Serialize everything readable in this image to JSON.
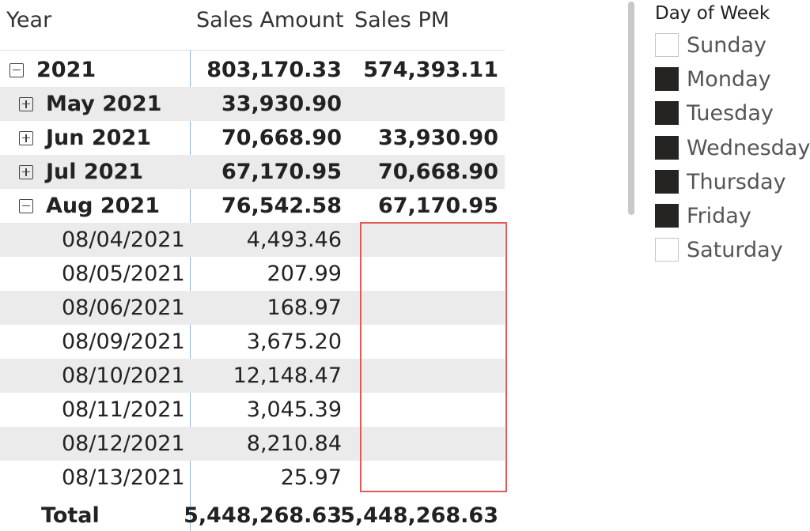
{
  "matrix": {
    "headers": {
      "year": "Year",
      "sales_amount": "Sales Amount",
      "sales_pm": "Sales PM"
    },
    "rows": {
      "r2021": {
        "label": "2021",
        "sales": "803,170.33",
        "pm": "574,393.11"
      },
      "may": {
        "label": "May 2021",
        "sales": "33,930.90",
        "pm": ""
      },
      "jun": {
        "label": "Jun 2021",
        "sales": "70,668.90",
        "pm": "33,930.90"
      },
      "jul": {
        "label": "Jul 2021",
        "sales": "67,170.95",
        "pm": "70,668.90"
      },
      "aug": {
        "label": "Aug 2021",
        "sales": "76,542.58",
        "pm": "67,170.95"
      },
      "d0804": {
        "label": "08/04/2021",
        "sales": "4,493.46",
        "pm": ""
      },
      "d0805": {
        "label": "08/05/2021",
        "sales": "207.99",
        "pm": ""
      },
      "d0806": {
        "label": "08/06/2021",
        "sales": "168.97",
        "pm": ""
      },
      "d0809": {
        "label": "08/09/2021",
        "sales": "3,675.20",
        "pm": ""
      },
      "d0810": {
        "label": "08/10/2021",
        "sales": "12,148.47",
        "pm": ""
      },
      "d0811": {
        "label": "08/11/2021",
        "sales": "3,045.39",
        "pm": ""
      },
      "d0812": {
        "label": "08/12/2021",
        "sales": "8,210.84",
        "pm": ""
      },
      "d0813": {
        "label": "08/13/2021",
        "sales": "25.97",
        "pm": ""
      }
    },
    "total": {
      "label": "Total",
      "sales": "5,448,268.63",
      "pm": "5,448,268.63"
    }
  },
  "slicer": {
    "title": "Day of Week",
    "items": [
      {
        "label": "Sunday",
        "checked": false
      },
      {
        "label": "Monday",
        "checked": true
      },
      {
        "label": "Tuesday",
        "checked": true
      },
      {
        "label": "Wednesday",
        "checked": true
      },
      {
        "label": "Thursday",
        "checked": true
      },
      {
        "label": "Friday",
        "checked": true
      },
      {
        "label": "Saturday",
        "checked": false
      }
    ]
  },
  "colors": {
    "highlight": "#e05a5a",
    "checked": "#252423",
    "stripe": "#ebebeb",
    "column_divider": "#8fb4e3"
  }
}
